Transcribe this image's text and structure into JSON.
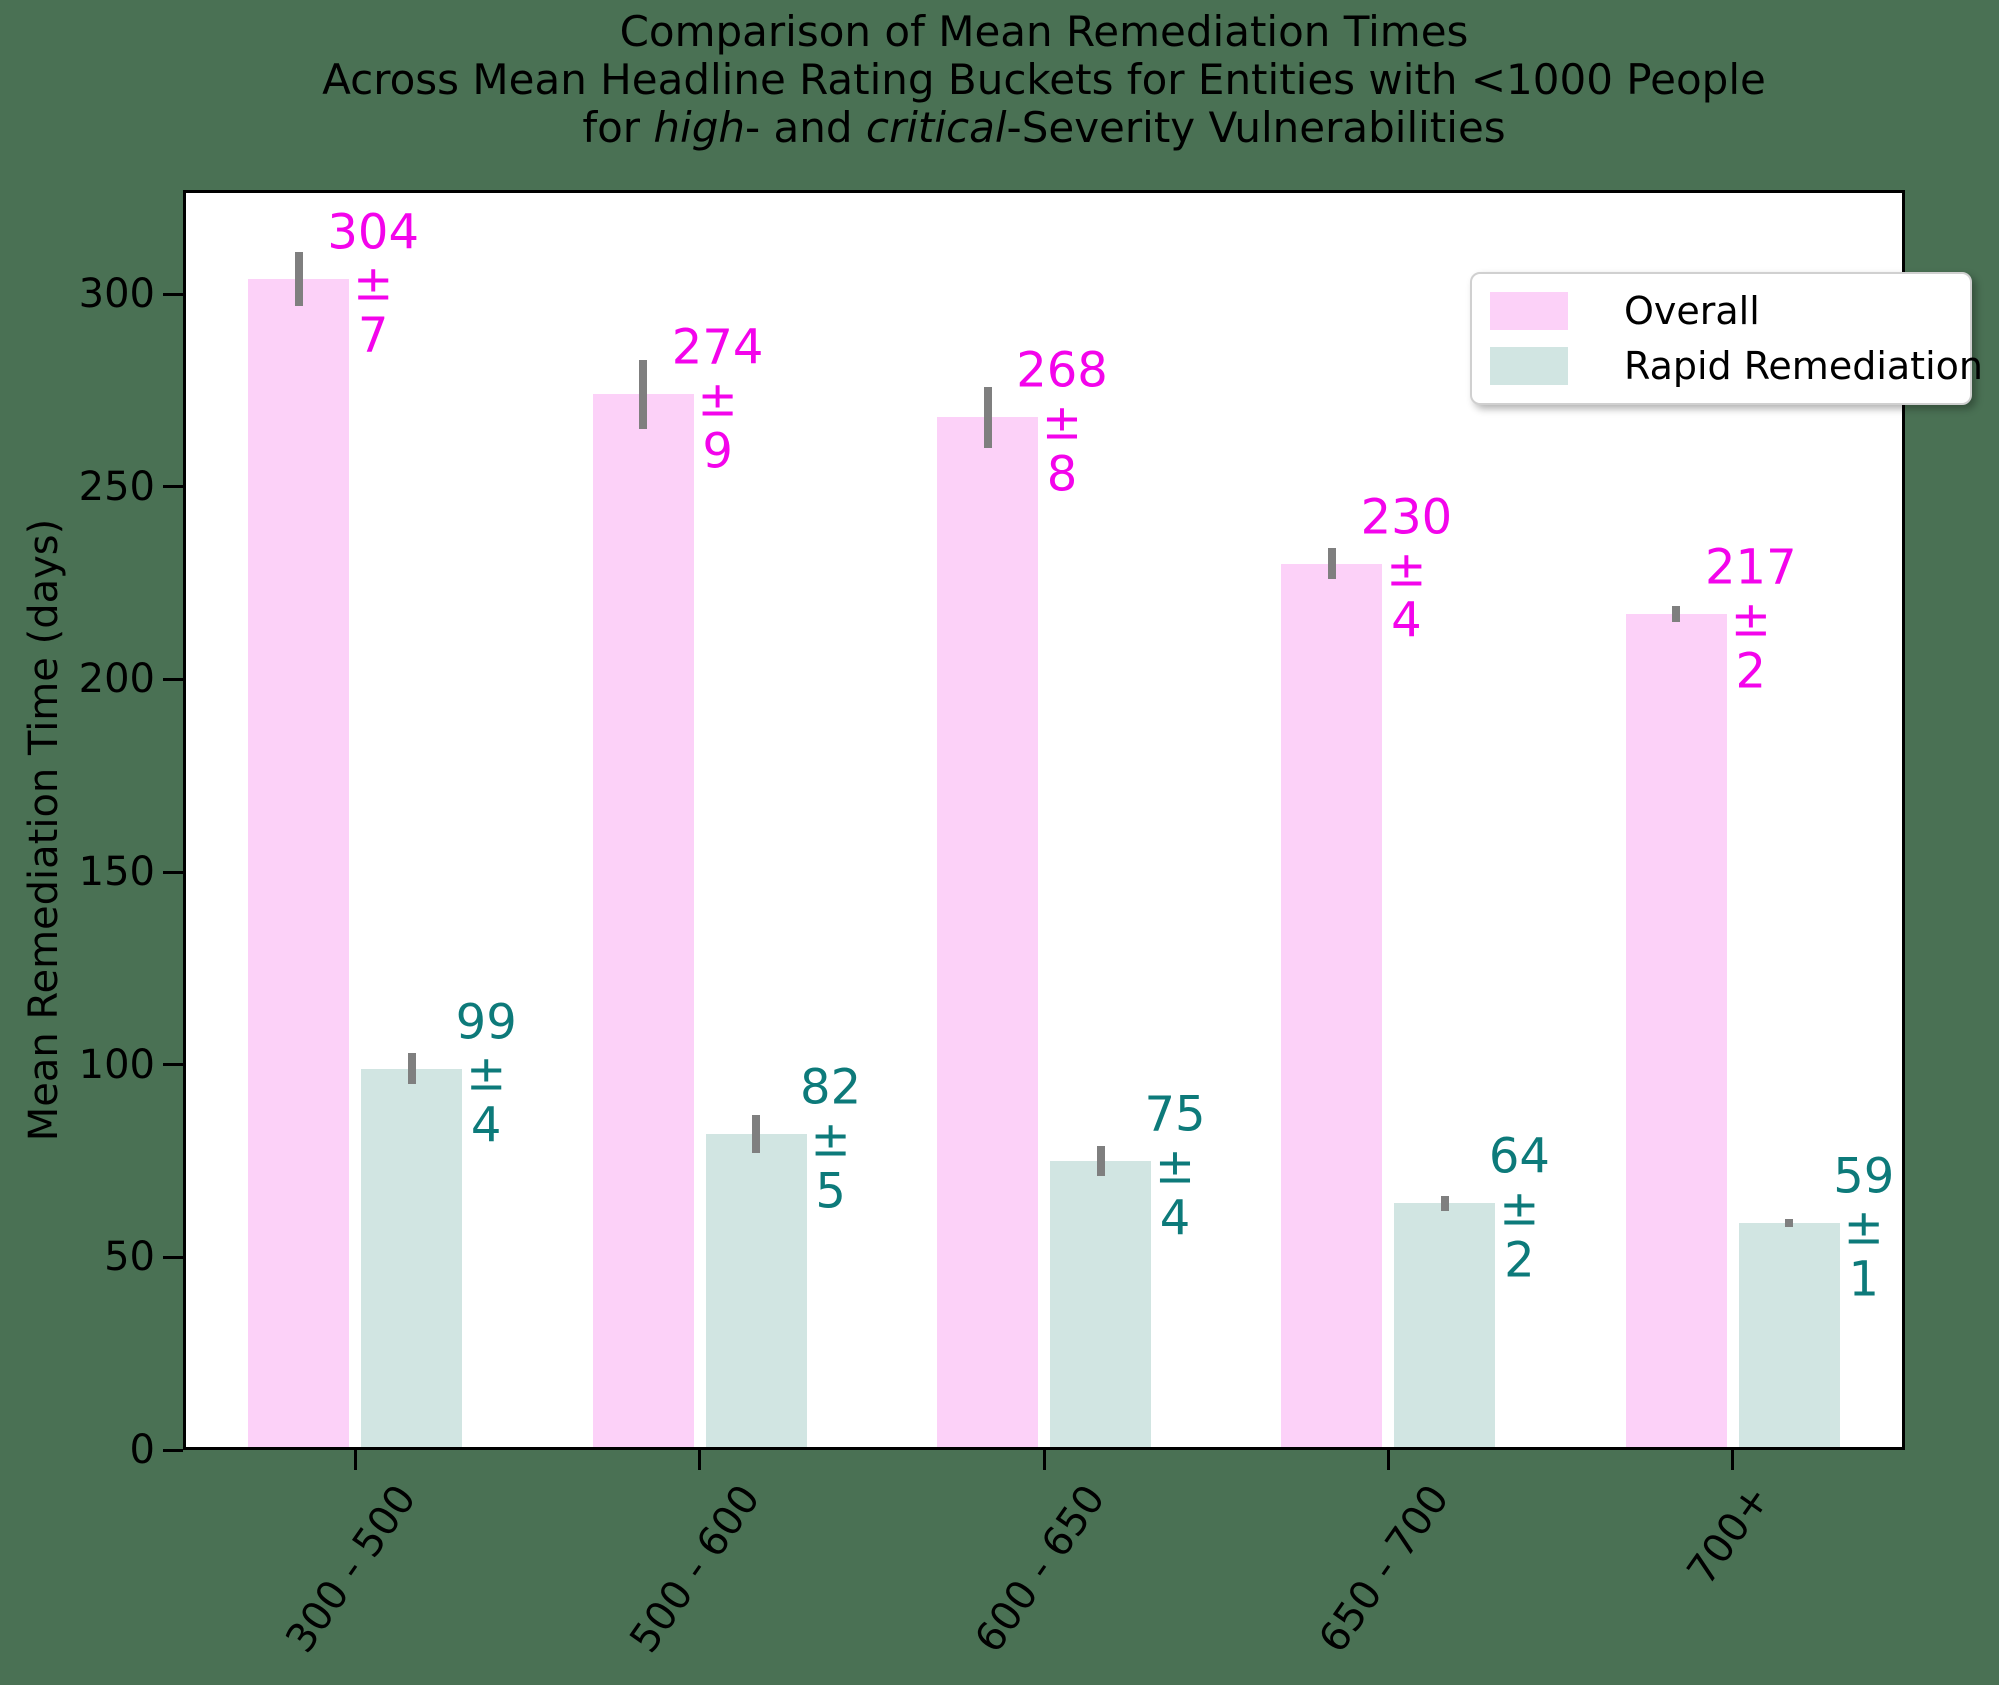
{
  "title": {
    "lines": [
      {
        "segments": [
          {
            "text": "Comparison of Mean Remediation Times"
          }
        ]
      },
      {
        "segments": [
          {
            "text": "Across Mean Headline Rating Buckets for Entities with <1000 People"
          }
        ]
      },
      {
        "segments": [
          {
            "text": "for "
          },
          {
            "text": "high",
            "italic": true
          },
          {
            "text": "- and "
          },
          {
            "text": "critical",
            "italic": true
          },
          {
            "text": "-Severity Vulnerabilities"
          }
        ]
      }
    ]
  },
  "chart_data": {
    "type": "bar",
    "categories": [
      "300 - 500",
      "500 - 600",
      "600 - 650",
      "650 - 700",
      "700+"
    ],
    "series": [
      {
        "name": "Overall",
        "color": "#fcd1f8",
        "label_color": "#f304eb",
        "values": [
          304,
          274,
          268,
          230,
          217
        ],
        "errors": [
          7,
          9,
          8,
          4,
          2
        ]
      },
      {
        "name": "Rapid Remediation",
        "color": "#d1e5e2",
        "label_color": "#0d7a7a",
        "values": [
          99,
          82,
          75,
          64,
          59
        ],
        "errors": [
          4,
          5,
          4,
          2,
          1
        ]
      }
    ],
    "value_label_format": "value over ± over error",
    "ylabel": "Mean Remediation Time (days)",
    "xlabel": "",
    "yticks": [
      0,
      50,
      100,
      150,
      200,
      250,
      300
    ],
    "ylim": [
      0,
      327
    ],
    "grid": false,
    "legend": {
      "position": "upper right",
      "entries": [
        "Overall",
        "Rapid Remediation"
      ]
    },
    "error_bar_color": "#7f7f7f",
    "colors": {
      "figure_background": "#4a7154",
      "plot_background": "#ffffff",
      "axis_color": "#000000",
      "legend_border": "#d0d0d0"
    }
  }
}
